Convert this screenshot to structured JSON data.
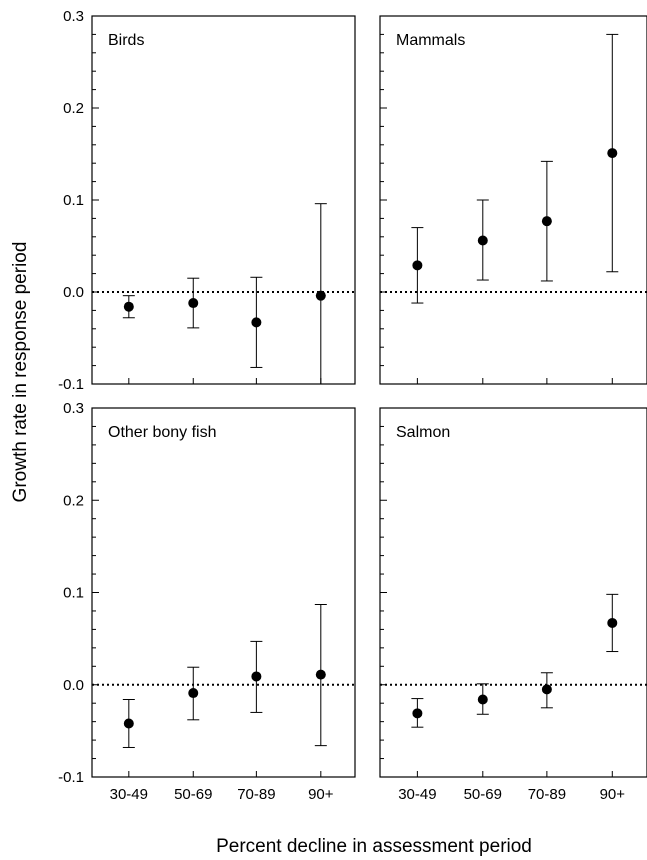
{
  "ylabel": "Growth rate in response period",
  "xlabel": "Percent decline in assessment period",
  "y_ticks": [
    "0.3",
    "0.2",
    "0.1",
    "0.0",
    "-0.1"
  ],
  "categories": [
    "30-49",
    "50-69",
    "70-89",
    "90+"
  ],
  "chart_data": [
    {
      "type": "scatter",
      "title": "Birds",
      "categories": [
        "30-49",
        "50-69",
        "70-89",
        "90+"
      ],
      "values": [
        -0.016,
        -0.012,
        -0.033,
        -0.004
      ],
      "lower": [
        -0.028,
        -0.039,
        -0.082,
        -0.12
      ],
      "upper": [
        -0.004,
        0.015,
        0.016,
        0.096
      ],
      "ylim": [
        -0.1,
        0.3
      ],
      "reference_line": 0
    },
    {
      "type": "scatter",
      "title": "Mammals",
      "categories": [
        "30-49",
        "50-69",
        "70-89",
        "90+"
      ],
      "values": [
        0.029,
        0.056,
        0.077,
        0.151
      ],
      "lower": [
        -0.012,
        0.013,
        0.012,
        0.022
      ],
      "upper": [
        0.07,
        0.1,
        0.142,
        0.28
      ],
      "ylim": [
        -0.1,
        0.3
      ],
      "reference_line": 0
    },
    {
      "type": "scatter",
      "title": "Other bony fish",
      "categories": [
        "30-49",
        "50-69",
        "70-89",
        "90+"
      ],
      "values": [
        -0.042,
        -0.009,
        0.009,
        0.011
      ],
      "lower": [
        -0.068,
        -0.038,
        -0.03,
        -0.066
      ],
      "upper": [
        -0.016,
        0.019,
        0.047,
        0.087
      ],
      "ylim": [
        -0.1,
        0.3
      ],
      "reference_line": 0
    },
    {
      "type": "scatter",
      "title": "Salmon",
      "categories": [
        "30-49",
        "50-69",
        "70-89",
        "90+"
      ],
      "values": [
        -0.031,
        -0.016,
        -0.005,
        0.067
      ],
      "lower": [
        -0.046,
        -0.032,
        -0.025,
        0.036
      ],
      "upper": [
        -0.015,
        0.001,
        0.013,
        0.098
      ],
      "ylim": [
        -0.1,
        0.3
      ],
      "reference_line": 0
    }
  ]
}
